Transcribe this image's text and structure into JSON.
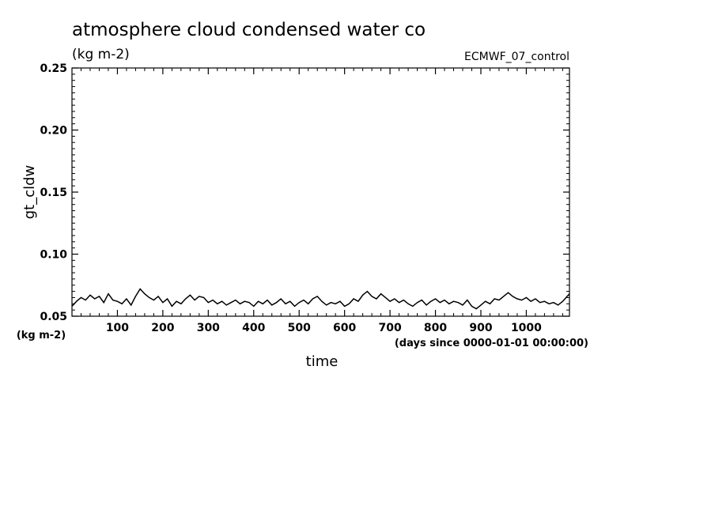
{
  "chart_data": {
    "type": "line",
    "title": "atmosphere cloud condensed water co",
    "units": "(kg m-2)",
    "source": "ECMWF_07_control",
    "ylabel": "gt_cldw",
    "xlabel": "time",
    "x_units": "(days since 0000-01-01 00:00:00)",
    "y_units_corner": "(kg m-2)",
    "xlim": [
      0,
      1095
    ],
    "ylim": [
      0.05,
      0.25
    ],
    "x_ticks": [
      100,
      200,
      300,
      400,
      500,
      600,
      700,
      800,
      900,
      1000
    ],
    "x_tick_labels": [
      "100",
      "200",
      "300",
      "400",
      "500",
      "600",
      "700",
      "800",
      "900",
      "1000"
    ],
    "y_ticks": [
      0.05,
      0.1,
      0.15,
      0.2,
      0.25
    ],
    "y_tick_labels": [
      "0.05",
      "0.10",
      "0.15",
      "0.20",
      "0.25"
    ],
    "line_color": "#000000",
    "series": [
      {
        "x": [
          0,
          10,
          20,
          30,
          40,
          50,
          60,
          70,
          80,
          90,
          100,
          110,
          120,
          130,
          140,
          150,
          160,
          170,
          180,
          190,
          200,
          210,
          220,
          230,
          240,
          250,
          260,
          270,
          280,
          290,
          300,
          310,
          320,
          330,
          340,
          350,
          360,
          370,
          380,
          390,
          400,
          410,
          420,
          430,
          440,
          450,
          460,
          470,
          480,
          490,
          500,
          510,
          520,
          530,
          540,
          550,
          560,
          570,
          580,
          590,
          600,
          610,
          620,
          630,
          640,
          650,
          660,
          670,
          680,
          690,
          700,
          710,
          720,
          730,
          740,
          750,
          760,
          770,
          780,
          790,
          800,
          810,
          820,
          830,
          840,
          850,
          860,
          870,
          880,
          890,
          900,
          910,
          920,
          930,
          940,
          950,
          960,
          970,
          980,
          990,
          1000,
          1010,
          1020,
          1030,
          1040,
          1050,
          1060,
          1070,
          1080,
          1090,
          1095
        ],
        "y": [
          0.058,
          0.062,
          0.065,
          0.063,
          0.067,
          0.064,
          0.066,
          0.061,
          0.068,
          0.063,
          0.062,
          0.06,
          0.064,
          0.059,
          0.066,
          0.072,
          0.068,
          0.065,
          0.063,
          0.066,
          0.061,
          0.064,
          0.058,
          0.062,
          0.06,
          0.064,
          0.067,
          0.063,
          0.066,
          0.065,
          0.061,
          0.063,
          0.06,
          0.062,
          0.059,
          0.061,
          0.063,
          0.06,
          0.062,
          0.061,
          0.058,
          0.062,
          0.06,
          0.063,
          0.059,
          0.061,
          0.064,
          0.06,
          0.062,
          0.058,
          0.061,
          0.063,
          0.06,
          0.064,
          0.066,
          0.062,
          0.059,
          0.061,
          0.06,
          0.062,
          0.058,
          0.06,
          0.064,
          0.062,
          0.067,
          0.07,
          0.066,
          0.064,
          0.068,
          0.065,
          0.062,
          0.064,
          0.061,
          0.063,
          0.06,
          0.058,
          0.061,
          0.063,
          0.059,
          0.062,
          0.064,
          0.061,
          0.063,
          0.06,
          0.062,
          0.061,
          0.059,
          0.063,
          0.058,
          0.056,
          0.059,
          0.062,
          0.06,
          0.064,
          0.063,
          0.066,
          0.069,
          0.066,
          0.064,
          0.063,
          0.065,
          0.062,
          0.064,
          0.061,
          0.062,
          0.06,
          0.061,
          0.059,
          0.062,
          0.066,
          0.068
        ]
      }
    ]
  }
}
